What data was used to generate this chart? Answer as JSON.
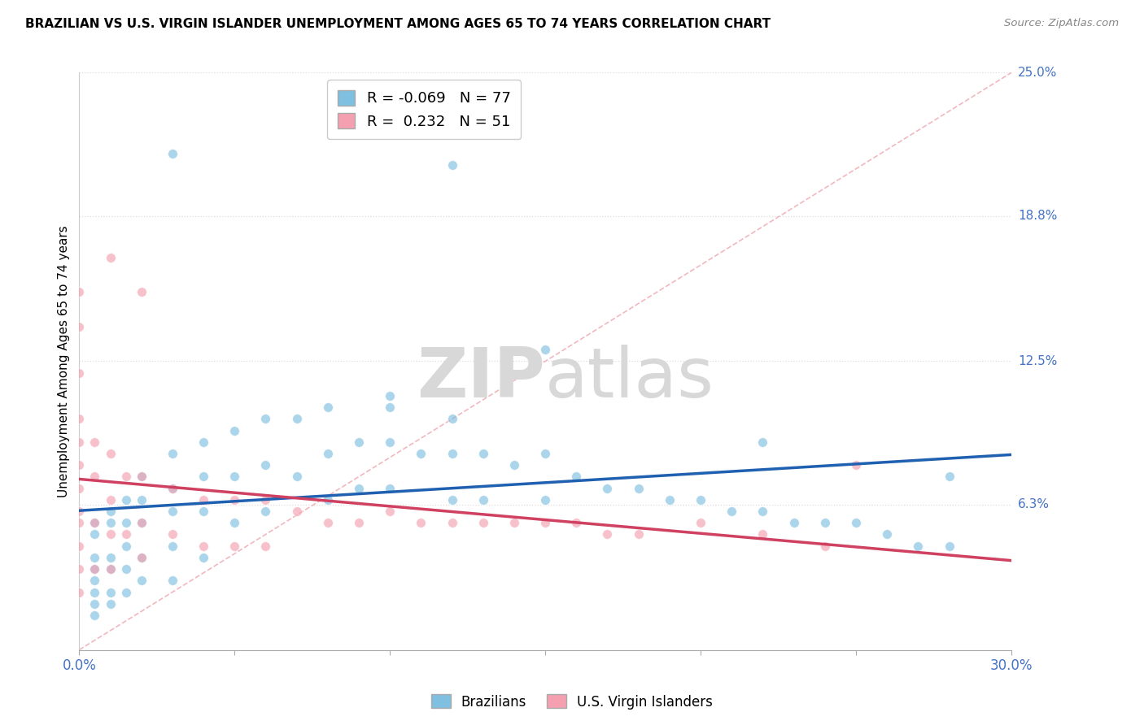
{
  "title": "BRAZILIAN VS U.S. VIRGIN ISLANDER UNEMPLOYMENT AMONG AGES 65 TO 74 YEARS CORRELATION CHART",
  "source": "Source: ZipAtlas.com",
  "ylabel": "Unemployment Among Ages 65 to 74 years",
  "xlim": [
    0.0,
    0.3
  ],
  "ylim": [
    0.0,
    0.25
  ],
  "xtick_positions": [
    0.0,
    0.05,
    0.1,
    0.15,
    0.2,
    0.25,
    0.3
  ],
  "xticklabels": [
    "0.0%",
    "",
    "",
    "",
    "",
    "",
    "30.0%"
  ],
  "ytick_positions": [
    0.0,
    0.063,
    0.125,
    0.188,
    0.25
  ],
  "ytick_labels": [
    "",
    "6.3%",
    "12.5%",
    "18.8%",
    "25.0%"
  ],
  "legend_r1": "R = -0.069",
  "legend_n1": "N = 77",
  "legend_r2": "R =  0.232",
  "legend_n2": "N = 51",
  "blue_scatter_color": "#7fbfdf",
  "pink_scatter_color": "#f4a0b0",
  "blue_line_color": "#2060b0",
  "pink_line_color": "#d04060",
  "ref_line_color": "#f0b0b8",
  "right_label_color": "#4472c4",
  "watermark_zip": "ZIP",
  "watermark_atlas": "atlas",
  "brazilians_x": [
    0.005,
    0.005,
    0.005,
    0.005,
    0.005,
    0.005,
    0.005,
    0.005,
    0.01,
    0.01,
    0.01,
    0.01,
    0.01,
    0.01,
    0.015,
    0.015,
    0.015,
    0.015,
    0.015,
    0.02,
    0.02,
    0.02,
    0.02,
    0.02,
    0.03,
    0.03,
    0.03,
    0.03,
    0.03,
    0.04,
    0.04,
    0.04,
    0.04,
    0.05,
    0.05,
    0.05,
    0.06,
    0.06,
    0.06,
    0.07,
    0.07,
    0.08,
    0.08,
    0.08,
    0.09,
    0.09,
    0.1,
    0.1,
    0.1,
    0.11,
    0.12,
    0.12,
    0.12,
    0.13,
    0.13,
    0.14,
    0.15,
    0.15,
    0.16,
    0.17,
    0.18,
    0.19,
    0.2,
    0.21,
    0.22,
    0.23,
    0.24,
    0.25,
    0.26,
    0.27,
    0.28,
    0.03,
    0.1,
    0.12,
    0.15,
    0.22,
    0.28
  ],
  "brazilians_y": [
    0.05,
    0.055,
    0.04,
    0.035,
    0.03,
    0.025,
    0.02,
    0.015,
    0.06,
    0.055,
    0.04,
    0.035,
    0.025,
    0.02,
    0.065,
    0.055,
    0.045,
    0.035,
    0.025,
    0.075,
    0.065,
    0.055,
    0.04,
    0.03,
    0.085,
    0.07,
    0.06,
    0.045,
    0.03,
    0.09,
    0.075,
    0.06,
    0.04,
    0.095,
    0.075,
    0.055,
    0.1,
    0.08,
    0.06,
    0.1,
    0.075,
    0.105,
    0.085,
    0.065,
    0.09,
    0.07,
    0.11,
    0.09,
    0.07,
    0.085,
    0.1,
    0.085,
    0.065,
    0.085,
    0.065,
    0.08,
    0.085,
    0.065,
    0.075,
    0.07,
    0.07,
    0.065,
    0.065,
    0.06,
    0.06,
    0.055,
    0.055,
    0.055,
    0.05,
    0.045,
    0.045,
    0.215,
    0.105,
    0.21,
    0.13,
    0.09,
    0.075
  ],
  "vi_x": [
    0.0,
    0.0,
    0.0,
    0.0,
    0.0,
    0.0,
    0.0,
    0.0,
    0.0,
    0.0,
    0.0,
    0.0,
    0.005,
    0.005,
    0.005,
    0.005,
    0.01,
    0.01,
    0.01,
    0.01,
    0.015,
    0.015,
    0.02,
    0.02,
    0.02,
    0.03,
    0.03,
    0.04,
    0.04,
    0.05,
    0.05,
    0.06,
    0.06,
    0.07,
    0.08,
    0.09,
    0.1,
    0.11,
    0.12,
    0.13,
    0.14,
    0.15,
    0.16,
    0.17,
    0.18,
    0.2,
    0.22,
    0.24,
    0.25,
    0.01,
    0.02
  ],
  "vi_y": [
    0.155,
    0.14,
    0.12,
    0.1,
    0.09,
    0.08,
    0.07,
    0.06,
    0.055,
    0.045,
    0.035,
    0.025,
    0.09,
    0.075,
    0.055,
    0.035,
    0.085,
    0.065,
    0.05,
    0.035,
    0.075,
    0.05,
    0.075,
    0.055,
    0.04,
    0.07,
    0.05,
    0.065,
    0.045,
    0.065,
    0.045,
    0.065,
    0.045,
    0.06,
    0.055,
    0.055,
    0.06,
    0.055,
    0.055,
    0.055,
    0.055,
    0.055,
    0.055,
    0.05,
    0.05,
    0.055,
    0.05,
    0.045,
    0.08,
    0.17,
    0.155
  ]
}
